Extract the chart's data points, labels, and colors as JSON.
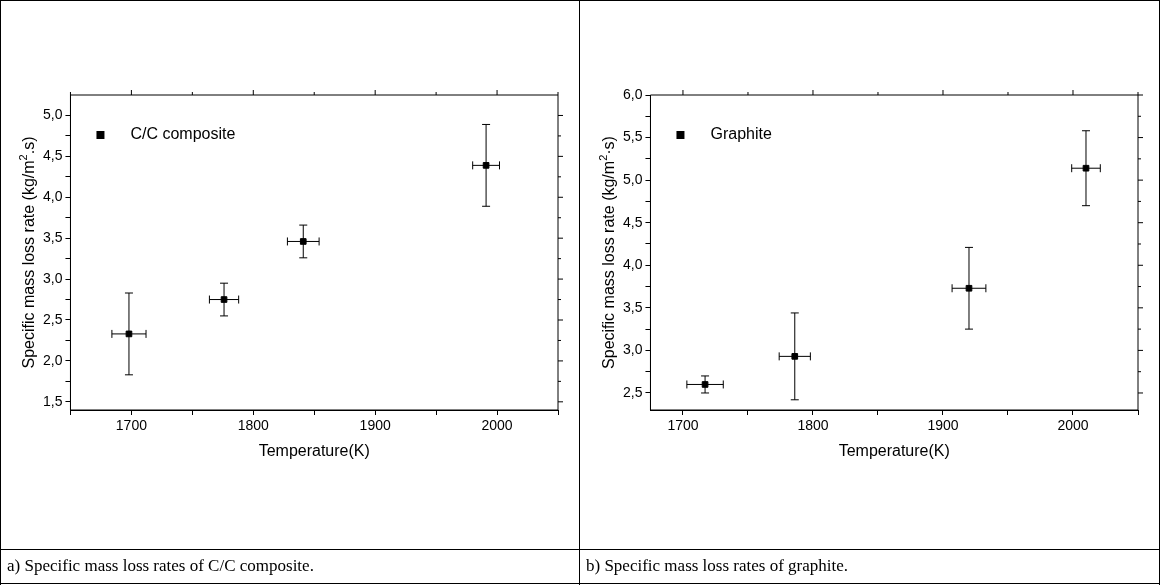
{
  "chart_data": [
    {
      "type": "scatter",
      "xlabel": "Temperature(K)",
      "ylabel": "Specific mass loss rate (kg/m$^{2}$.s)",
      "legend": "top left",
      "marker": "square",
      "series": [
        {
          "name": "C/C composite",
          "color": "#000000",
          "x": [
            1698,
            1776,
            1841,
            1991
          ],
          "values": [
            2.33,
            2.75,
            3.46,
            4.39
          ],
          "errors": [
            0.5,
            0.2,
            0.2,
            0.5
          ],
          "xerrors": [
            14,
            12,
            13,
            11
          ]
        }
      ],
      "xlim": [
        1650,
        2050
      ],
      "ylim": [
        1.4,
        5.25
      ],
      "xticks": [
        {
          "value": 1650,
          "label": null
        },
        1700,
        {
          "value": 1750,
          "label": null
        },
        1800,
        {
          "value": 1850,
          "label": null
        },
        1900,
        {
          "value": 1950,
          "label": null
        },
        2000,
        {
          "value": 2050,
          "label": null
        }
      ],
      "yticks": [
        {
          "value": 1.5,
          "label": "1,5"
        },
        {
          "value": 1.75,
          "label": null
        },
        {
          "value": 2,
          "label": "2,0"
        },
        {
          "value": 2.25,
          "label": null
        },
        {
          "value": 2.5,
          "label": "2,5"
        },
        {
          "value": 2.75,
          "label": null
        },
        {
          "value": 3,
          "label": "3,0"
        },
        {
          "value": 3.25,
          "label": null
        },
        {
          "value": 3.5,
          "label": "3,5"
        },
        {
          "value": 3.75,
          "label": null
        },
        {
          "value": 4,
          "label": "4,0"
        },
        {
          "value": 4.25,
          "label": null
        },
        {
          "value": 4.5,
          "label": "4,5"
        },
        {
          "value": 4.75,
          "label": null
        },
        {
          "value": 5,
          "label": "5,0"
        }
      ],
      "annotations": [
        "a) Specific mass loss rates of C/C composite."
      ]
    },
    {
      "type": "scatter",
      "xlabel": "Temperature(K)",
      "ylabel": "Specific mass loss rate (kg/m$^{2}$·s)",
      "legend": "top left",
      "marker": "square",
      "series": [
        {
          "name": "Graphite",
          "color": "#000000",
          "x": [
            1717,
            1786,
            1920,
            2010
          ],
          "values": [
            2.6,
            2.93,
            3.73,
            5.14
          ],
          "errors": [
            0.1,
            0.51,
            0.48,
            0.44
          ],
          "xerrors": [
            14,
            12,
            13,
            11
          ]
        }
      ],
      "xlim": [
        1675,
        2050
      ],
      "ylim": [
        2.3,
        6.0
      ],
      "xticks": [
        1700,
        {
          "value": 1750,
          "label": null
        },
        1800,
        {
          "value": 1850,
          "label": null
        },
        1900,
        {
          "value": 1950,
          "label": null
        },
        2000,
        {
          "value": 2050,
          "label": null
        }
      ],
      "yticks": [
        {
          "value": 2.5,
          "label": "2,5"
        },
        {
          "value": 2.75,
          "label": null
        },
        {
          "value": 3,
          "label": "3,0"
        },
        {
          "value": 3.25,
          "label": null
        },
        {
          "value": 3.5,
          "label": "3,5"
        },
        {
          "value": 3.75,
          "label": null
        },
        {
          "value": 4,
          "label": "4,0"
        },
        {
          "value": 4.25,
          "label": null
        },
        {
          "value": 4.5,
          "label": "4,5"
        },
        {
          "value": 4.75,
          "label": null
        },
        {
          "value": 5,
          "label": "5,0"
        },
        {
          "value": 5.25,
          "label": null
        },
        {
          "value": 5.5,
          "label": "5,5"
        },
        {
          "value": 5.75,
          "label": null
        },
        {
          "value": 6,
          "label": "6,0"
        }
      ],
      "annotations": [
        "b) Specific mass loss rates of graphite."
      ]
    }
  ]
}
